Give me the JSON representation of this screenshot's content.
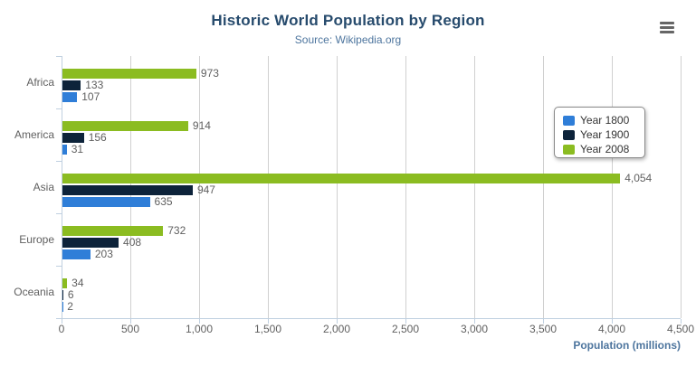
{
  "chart_data": {
    "type": "bar",
    "orientation": "horizontal",
    "title": "Historic World Population by Region",
    "subtitle": "Source: Wikipedia.org",
    "categories": [
      "Africa",
      "America",
      "Asia",
      "Europe",
      "Oceania"
    ],
    "series": [
      {
        "name": "Year 1800",
        "color": "#2f7ed8",
        "values": [
          107,
          31,
          635,
          203,
          2
        ]
      },
      {
        "name": "Year 1900",
        "color": "#0d233a",
        "values": [
          133,
          156,
          947,
          408,
          6
        ]
      },
      {
        "name": "Year 2008",
        "color": "#8bbc21",
        "values": [
          973,
          914,
          4054,
          732,
          34
        ]
      }
    ],
    "bar_order_top_to_bottom": [
      "Year 2008",
      "Year 1900",
      "Year 1800"
    ],
    "xlabel": "Population (millions)",
    "xlim": [
      0,
      4500
    ],
    "tick_interval": 500,
    "x_ticks": [
      "0",
      "500",
      "1,000",
      "1,500",
      "2,000",
      "2,500",
      "3,000",
      "3,500",
      "4,000",
      "4,500"
    ],
    "grid": true,
    "data_labels": true,
    "legend_position": "floating-right"
  },
  "export_menu": {
    "icon": "hamburger-menu-icon"
  },
  "colors": {
    "title": "#274b6d",
    "subtitle": "#4d759e",
    "axis_title": "#4d759e",
    "labels": "#606060",
    "gridline": "#d0d0d0",
    "axis_line": "#c0d0e0",
    "legend_border": "#8a8a8a",
    "menu_icon": "#666666",
    "background": "#ffffff"
  }
}
